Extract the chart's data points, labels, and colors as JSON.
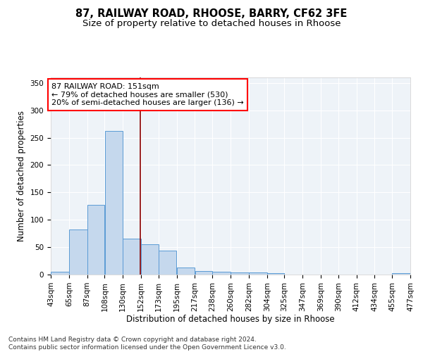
{
  "title_line1": "87, RAILWAY ROAD, RHOOSE, BARRY, CF62 3FE",
  "title_line2": "Size of property relative to detached houses in Rhoose",
  "xlabel": "Distribution of detached houses by size in Rhoose",
  "ylabel": "Number of detached properties",
  "footnote": "Contains HM Land Registry data © Crown copyright and database right 2024.\nContains public sector information licensed under the Open Government Licence v3.0.",
  "bar_left_edges": [
    43,
    65,
    87,
    108,
    130,
    152,
    173,
    195,
    217,
    238,
    260,
    282,
    304,
    325,
    347,
    369,
    390,
    412,
    434,
    455
  ],
  "bar_widths": [
    22,
    22,
    21,
    22,
    22,
    21,
    22,
    22,
    21,
    22,
    22,
    22,
    21,
    22,
    22,
    21,
    22,
    22,
    21,
    22
  ],
  "bar_heights": [
    5,
    82,
    127,
    262,
    65,
    55,
    44,
    13,
    6,
    5,
    4,
    4,
    3,
    0,
    0,
    0,
    0,
    0,
    0,
    2
  ],
  "bar_color": "#c5d8ed",
  "bar_edge_color": "#5b9bd5",
  "red_line_x": 151,
  "ylim": [
    0,
    360
  ],
  "yticks": [
    0,
    50,
    100,
    150,
    200,
    250,
    300,
    350
  ],
  "xtick_labels": [
    "43sqm",
    "65sqm",
    "87sqm",
    "108sqm",
    "130sqm",
    "152sqm",
    "173sqm",
    "195sqm",
    "217sqm",
    "238sqm",
    "260sqm",
    "282sqm",
    "304sqm",
    "325sqm",
    "347sqm",
    "369sqm",
    "390sqm",
    "412sqm",
    "434sqm",
    "455sqm",
    "477sqm"
  ],
  "annotation_text": "87 RAILWAY ROAD: 151sqm\n← 79% of detached houses are smaller (530)\n20% of semi-detached houses are larger (136) →",
  "annotation_box_color": "white",
  "annotation_box_edgecolor": "red",
  "bg_color": "#eef3f8",
  "grid_color": "white",
  "title_fontsize": 10.5,
  "subtitle_fontsize": 9.5,
  "axis_label_fontsize": 8.5,
  "tick_fontsize": 7.5,
  "annot_fontsize": 8,
  "xlim_left": 43,
  "xlim_right": 477
}
